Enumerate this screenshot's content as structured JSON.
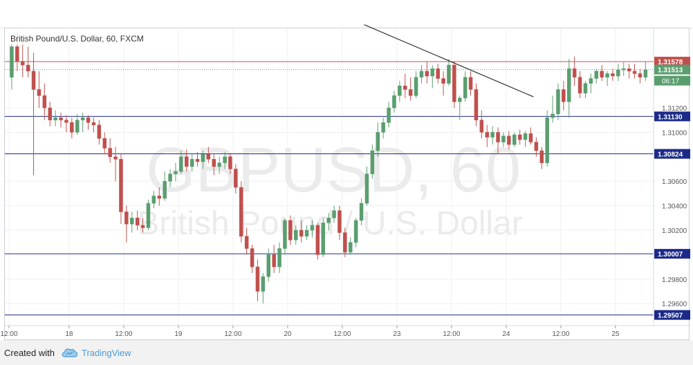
{
  "footer": {
    "created_with": "Created with",
    "brand": "TradingView"
  },
  "colors": {
    "up": "#5a9e6f",
    "down": "#c0504d",
    "hline": "#1b2a8a",
    "red_line": "#c0504d",
    "trendline": "#333333",
    "watermark": "#e9e9e9"
  },
  "chart_data": {
    "type": "candlestick",
    "title": "British Pound/U.S. Dollar, 60, FXCM",
    "watermark_symbol": "GBPUSD, 60",
    "watermark_name": "British Pound / U.S. Dollar",
    "ylim": [
      1.2942,
      1.3185
    ],
    "y_ticks": [
      "1.31200",
      "1.31000",
      "1.30600",
      "1.30400",
      "1.30200",
      "1.29800",
      "1.29600"
    ],
    "x_ticks": [
      "12:00",
      "18",
      "12:00",
      "19",
      "12:00",
      "20",
      "12:00",
      "23",
      "12:00",
      "24",
      "12:00",
      "25"
    ],
    "x_tick_slots": [
      0,
      11,
      21,
      31,
      41,
      51,
      61,
      71,
      81,
      91,
      101,
      111
    ],
    "horizontal_levels": [
      {
        "value": 1.31578,
        "label": "1.31578",
        "style": "red"
      },
      {
        "value": 1.3113,
        "label": "1.31130",
        "style": "blue"
      },
      {
        "value": 1.30824,
        "label": "1.30824",
        "style": "blue"
      },
      {
        "value": 1.30007,
        "label": "1.30007",
        "style": "blue"
      },
      {
        "value": 1.29507,
        "label": "1.29507",
        "style": "blue"
      }
    ],
    "last_price": {
      "value": 1.31513,
      "label": "1.31513",
      "countdown": "06:17"
    },
    "trendline": {
      "from": {
        "slot": 65,
        "price": 1.3188
      },
      "to": {
        "slot": 96,
        "price": 1.3129
      }
    },
    "candles": [
      [
        1.3145,
        1.318,
        1.3135,
        1.317
      ],
      [
        1.317,
        1.3182,
        1.315,
        1.3158
      ],
      [
        1.3158,
        1.3175,
        1.3145,
        1.3155
      ],
      [
        1.3155,
        1.317,
        1.3145,
        1.315
      ],
      [
        1.315,
        1.3165,
        1.3065,
        1.3135
      ],
      [
        1.3135,
        1.315,
        1.312,
        1.313
      ],
      [
        1.313,
        1.314,
        1.311,
        1.312
      ],
      [
        1.312,
        1.3125,
        1.3105,
        1.311
      ],
      [
        1.311,
        1.3118,
        1.3105,
        1.3112
      ],
      [
        1.3112,
        1.3116,
        1.3104,
        1.311
      ],
      [
        1.311,
        1.3114,
        1.31,
        1.3108
      ],
      [
        1.3108,
        1.3112,
        1.3095,
        1.31
      ],
      [
        1.31,
        1.3115,
        1.3098,
        1.311
      ],
      [
        1.311,
        1.3116,
        1.31,
        1.3112
      ],
      [
        1.3112,
        1.3114,
        1.3102,
        1.3108
      ],
      [
        1.3108,
        1.3112,
        1.31,
        1.3106
      ],
      [
        1.3106,
        1.311,
        1.309,
        1.3095
      ],
      [
        1.3095,
        1.31,
        1.3082,
        1.3087
      ],
      [
        1.3087,
        1.3095,
        1.3075,
        1.308
      ],
      [
        1.308,
        1.3088,
        1.306,
        1.3078
      ],
      [
        1.3078,
        1.3082,
        1.3025,
        1.3035
      ],
      [
        1.3035,
        1.304,
        1.301,
        1.3025
      ],
      [
        1.3025,
        1.3035,
        1.3018,
        1.303
      ],
      [
        1.303,
        1.3036,
        1.302,
        1.3024
      ],
      [
        1.3024,
        1.303,
        1.3018,
        1.3022
      ],
      [
        1.3022,
        1.3045,
        1.302,
        1.3042
      ],
      [
        1.3042,
        1.3052,
        1.3038,
        1.3048
      ],
      [
        1.3048,
        1.3055,
        1.304,
        1.3046
      ],
      [
        1.3046,
        1.3068,
        1.3044,
        1.306
      ],
      [
        1.306,
        1.307,
        1.3055,
        1.3066
      ],
      [
        1.3066,
        1.3075,
        1.306,
        1.3068
      ],
      [
        1.3068,
        1.3085,
        1.3066,
        1.308
      ],
      [
        1.308,
        1.3086,
        1.3068,
        1.3072
      ],
      [
        1.3072,
        1.3082,
        1.3068,
        1.3078
      ],
      [
        1.3078,
        1.3084,
        1.3072,
        1.3076
      ],
      [
        1.3076,
        1.3085,
        1.307,
        1.3082
      ],
      [
        1.3082,
        1.3088,
        1.3075,
        1.3078
      ],
      [
        1.3078,
        1.3082,
        1.3065,
        1.3072
      ],
      [
        1.3072,
        1.308,
        1.3066,
        1.3075
      ],
      [
        1.3075,
        1.3084,
        1.307,
        1.308
      ],
      [
        1.308,
        1.3082,
        1.3066,
        1.307
      ],
      [
        1.307,
        1.3074,
        1.305,
        1.3055
      ],
      [
        1.3055,
        1.306,
        1.301,
        1.3015
      ],
      [
        1.3015,
        1.3022,
        1.3,
        1.3005
      ],
      [
        1.3005,
        1.3008,
        1.2985,
        1.299
      ],
      [
        1.299,
        1.2996,
        1.2962,
        1.297
      ],
      [
        1.297,
        1.2985,
        1.296,
        1.2982
      ],
      [
        1.2982,
        1.3005,
        1.2978,
        1.3
      ],
      [
        1.3,
        1.3008,
        1.2985,
        1.299
      ],
      [
        1.299,
        1.301,
        1.2985,
        1.3005
      ],
      [
        1.3005,
        1.303,
        1.3,
        1.3028
      ],
      [
        1.3028,
        1.3032,
        1.3008,
        1.3012
      ],
      [
        1.3012,
        1.3024,
        1.3008,
        1.302
      ],
      [
        1.302,
        1.3028,
        1.301,
        1.3015
      ],
      [
        1.3015,
        1.3024,
        1.3012,
        1.302
      ],
      [
        1.302,
        1.3028,
        1.3014,
        1.3024
      ],
      [
        1.3024,
        1.3026,
        1.2996,
        1.3
      ],
      [
        1.3,
        1.303,
        1.2998,
        1.3026
      ],
      [
        1.3026,
        1.3034,
        1.302,
        1.303
      ],
      [
        1.303,
        1.304,
        1.3026,
        1.3036
      ],
      [
        1.3036,
        1.304,
        1.3012,
        1.3018
      ],
      [
        1.3018,
        1.3022,
        1.2998,
        1.3002
      ],
      [
        1.3002,
        1.3014,
        1.3,
        1.301
      ],
      [
        1.301,
        1.303,
        1.3006,
        1.3028
      ],
      [
        1.3028,
        1.3046,
        1.3024,
        1.3042
      ],
      [
        1.3042,
        1.3072,
        1.304,
        1.3066
      ],
      [
        1.3066,
        1.309,
        1.3062,
        1.3085
      ],
      [
        1.3085,
        1.3108,
        1.308,
        1.31
      ],
      [
        1.31,
        1.3112,
        1.3095,
        1.3108
      ],
      [
        1.3108,
        1.3125,
        1.3104,
        1.312
      ],
      [
        1.312,
        1.3134,
        1.3116,
        1.313
      ],
      [
        1.313,
        1.3142,
        1.3125,
        1.3138
      ],
      [
        1.3138,
        1.3148,
        1.3128,
        1.3135
      ],
      [
        1.3135,
        1.3145,
        1.3126,
        1.313
      ],
      [
        1.313,
        1.315,
        1.3128,
        1.3145
      ],
      [
        1.3145,
        1.3155,
        1.314,
        1.315
      ],
      [
        1.315,
        1.3158,
        1.314,
        1.3146
      ],
      [
        1.3146,
        1.3155,
        1.3136,
        1.3152
      ],
      [
        1.3152,
        1.3156,
        1.314,
        1.3144
      ],
      [
        1.3144,
        1.315,
        1.313,
        1.314
      ],
      [
        1.314,
        1.316,
        1.3138,
        1.3155
      ],
      [
        1.3155,
        1.3158,
        1.312,
        1.3125
      ],
      [
        1.3125,
        1.313,
        1.311,
        1.3128
      ],
      [
        1.3128,
        1.315,
        1.3125,
        1.3145
      ],
      [
        1.3145,
        1.315,
        1.313,
        1.3135
      ],
      [
        1.3135,
        1.314,
        1.3105,
        1.311
      ],
      [
        1.311,
        1.3118,
        1.3095,
        1.31
      ],
      [
        1.31,
        1.3106,
        1.3088,
        1.3096
      ],
      [
        1.3096,
        1.3105,
        1.309,
        1.31
      ],
      [
        1.31,
        1.3104,
        1.3082,
        1.3092
      ],
      [
        1.3092,
        1.31,
        1.3088,
        1.3097
      ],
      [
        1.3097,
        1.3101,
        1.3086,
        1.309
      ],
      [
        1.309,
        1.31,
        1.3088,
        1.3098
      ],
      [
        1.3098,
        1.3102,
        1.309,
        1.3094
      ],
      [
        1.3094,
        1.3101,
        1.3088,
        1.3099
      ],
      [
        1.3099,
        1.3104,
        1.309,
        1.3092
      ],
      [
        1.3092,
        1.3096,
        1.308,
        1.3085
      ],
      [
        1.3085,
        1.3088,
        1.307,
        1.3075
      ],
      [
        1.3075,
        1.3118,
        1.3072,
        1.3112
      ],
      [
        1.3112,
        1.313,
        1.3108,
        1.3115
      ],
      [
        1.3115,
        1.314,
        1.311,
        1.3135
      ],
      [
        1.3135,
        1.3142,
        1.3118,
        1.3125
      ],
      [
        1.3125,
        1.316,
        1.3112,
        1.3152
      ],
      [
        1.3152,
        1.3162,
        1.3138,
        1.3145
      ],
      [
        1.3145,
        1.315,
        1.3128,
        1.3132
      ],
      [
        1.3132,
        1.3142,
        1.3128,
        1.314
      ],
      [
        1.314,
        1.3148,
        1.3132,
        1.3144
      ],
      [
        1.3144,
        1.3152,
        1.314,
        1.315
      ],
      [
        1.315,
        1.3155,
        1.3142,
        1.3145
      ],
      [
        1.3145,
        1.315,
        1.3138,
        1.3148
      ],
      [
        1.3148,
        1.3152,
        1.3142,
        1.3146
      ],
      [
        1.3146,
        1.3156,
        1.3142,
        1.3151
      ],
      [
        1.3151,
        1.3158,
        1.3146,
        1.3152
      ],
      [
        1.3152,
        1.3156,
        1.3144,
        1.315
      ],
      [
        1.315,
        1.3156,
        1.3144,
        1.3148
      ],
      [
        1.3148,
        1.3152,
        1.314,
        1.3145
      ],
      [
        1.3145,
        1.3158,
        1.3142,
        1.3151
      ]
    ]
  }
}
